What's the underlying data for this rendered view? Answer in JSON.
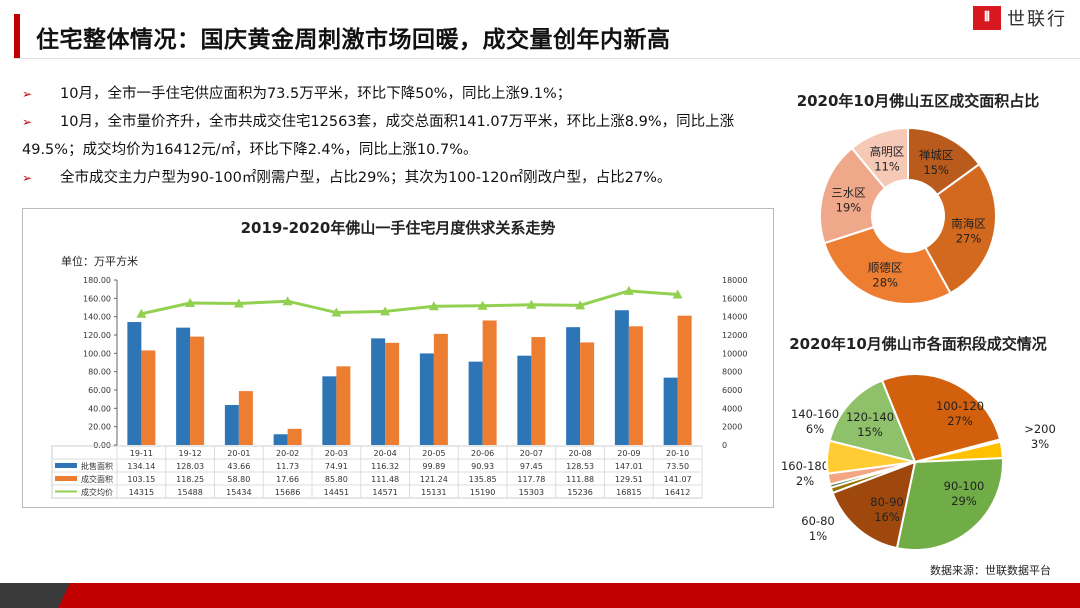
{
  "header": {
    "title": "住宅整体情况：国庆黄金周刺激市场回暖，成交量创年内新高",
    "logo_text": "世联行",
    "logo_mark": "(|||)"
  },
  "bullets": [
    "10月，全市一手住宅供应面积为73.5万平米，环比下降50%，同比上涨9.1%；",
    "10月，全市量价齐升，全市共成交住宅12563套，成交总面积141.07万平米，环比上涨8.9%，同比上涨49.5%；成交均价为16412元/㎡，环比下降2.4%，同比上涨10.7%。",
    "全市成交主力户型为90-100㎡刚需户型，占比29%；其次为100-120㎡刚改户型，占比27%。"
  ],
  "bullet_icon": "arrow-right-icon",
  "source": "数据来源：世联数据平台",
  "chart_data": [
    {
      "type": "bar",
      "title": "2019-2020年佛山一手住宅月度供求关系走势",
      "ylabel": "单位：万平方米",
      "ylim": [
        0,
        180
      ],
      "y_ticks": [
        "0.00",
        "20.00",
        "40.00",
        "60.00",
        "80.00",
        "100.00",
        "120.00",
        "140.00",
        "160.00",
        "180.00"
      ],
      "y2lim": [
        0,
        18000
      ],
      "y2_ticks": [
        "0",
        "2000",
        "4000",
        "6000",
        "8000",
        "10000",
        "12000",
        "14000",
        "16000",
        "18000"
      ],
      "categories": [
        "19-11",
        "19-12",
        "20-01",
        "20-02",
        "20-03",
        "20-04",
        "20-05",
        "20-06",
        "20-07",
        "20-08",
        "20-09",
        "20-10"
      ],
      "series": [
        {
          "name": "批售面积",
          "type": "bar",
          "color": "#2e75b6",
          "values": [
            134.14,
            128.03,
            43.66,
            11.73,
            74.91,
            116.32,
            99.89,
            90.93,
            97.45,
            128.53,
            147.01,
            73.5
          ],
          "labels": [
            "134.14",
            "128.03",
            "43.66",
            "11.73",
            "74.91",
            "116.32",
            "99.89",
            "90.93",
            "97.45",
            "128.53",
            "147.01",
            "73.50"
          ]
        },
        {
          "name": "成交面积",
          "type": "bar",
          "color": "#ed7d31",
          "values": [
            103.15,
            118.25,
            58.8,
            17.66,
            85.8,
            111.48,
            121.24,
            135.85,
            117.78,
            111.88,
            129.51,
            141.07
          ],
          "labels": [
            "103.15",
            "118.25",
            "58.80",
            "17.66",
            "85.80",
            "111.48",
            "121.24",
            "135.85",
            "117.78",
            "111.88",
            "129.51",
            "141.07"
          ]
        },
        {
          "name": "成交均价",
          "type": "line",
          "axis": "right",
          "color": "#92d050",
          "values": [
            14315,
            15488,
            15434,
            15686,
            14451,
            14571,
            15131,
            15190,
            15303,
            15236,
            16815,
            16412
          ],
          "labels": [
            "14315",
            "15488",
            "15434",
            "15686",
            "14451",
            "14571",
            "15131",
            "15190",
            "15303",
            "15236",
            "16815",
            "16412"
          ]
        }
      ],
      "legend": "data-table"
    },
    {
      "type": "pie",
      "donut": true,
      "title": "2020年10月佛山五区成交面积占比",
      "slices": [
        {
          "label": "禅城区",
          "value": 15,
          "text": "15%",
          "color": "#b85b1c"
        },
        {
          "label": "南海区",
          "value": 27,
          "text": "27%",
          "color": "#d2691f"
        },
        {
          "label": "顺德区",
          "value": 28,
          "text": "28%",
          "color": "#ed7d31"
        },
        {
          "label": "三水区",
          "value": 19,
          "text": "19%",
          "color": "#f0a88a"
        },
        {
          "label": "高明区",
          "value": 11,
          "text": "11%",
          "color": "#f5c9b6"
        }
      ]
    },
    {
      "type": "pie",
      "title": "2020年10月佛山市各面积段成交情况",
      "slices": [
        {
          "label": "100-120",
          "value": 27,
          "text": "27%",
          "color": "#d2600c"
        },
        {
          "label": "",
          "value": 0.4,
          "text": "",
          "color": "#f4b183"
        },
        {
          "label": ">200",
          "value": 3,
          "text": "3%",
          "color": "#ffc000"
        },
        {
          "label": "90-100",
          "value": 29,
          "text": "29%",
          "color": "#70ad47"
        },
        {
          "label": "80-90",
          "value": 16,
          "text": "16%",
          "color": "#9e480e"
        },
        {
          "label": "60-80",
          "value": 1,
          "text": "1%",
          "color": "#997300"
        },
        {
          "label": "",
          "value": 0.6,
          "text": "",
          "color": "#43682b"
        },
        {
          "label": "160-180",
          "value": 2,
          "text": "2%",
          "color": "#f4a582"
        },
        {
          "label": "140-160",
          "value": 6,
          "text": "6%",
          "color": "#ffcd33"
        },
        {
          "label": "120-140",
          "value": 15,
          "text": "15%",
          "color": "#8fc16a"
        }
      ]
    }
  ]
}
